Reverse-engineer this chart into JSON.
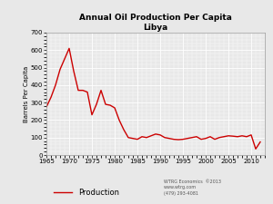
{
  "title": "Annual Oil Production Per Capita\nLibya",
  "ylabel": "Barrels Per Capita",
  "xlabel": "",
  "legend_label": "Production",
  "line_color": "#cc0000",
  "fig_facecolor": "#e8e8e8",
  "plot_facecolor": "#e8e8e8",
  "ylim": [
    0,
    700
  ],
  "xlim": [
    1965,
    2013
  ],
  "yticks": [
    0,
    100,
    200,
    300,
    400,
    500,
    600,
    700
  ],
  "xticks": [
    1965,
    1970,
    1975,
    1980,
    1985,
    1990,
    1995,
    2000,
    2005,
    2010
  ],
  "watermark": "WTRG Economics  ©2013\nwww.wtrg.com\n(479) 293-4081",
  "years": [
    1965,
    1966,
    1967,
    1968,
    1969,
    1970,
    1971,
    1972,
    1973,
    1974,
    1975,
    1976,
    1977,
    1978,
    1979,
    1980,
    1981,
    1982,
    1983,
    1984,
    1985,
    1986,
    1987,
    1988,
    1989,
    1990,
    1991,
    1992,
    1993,
    1994,
    1995,
    1996,
    1997,
    1998,
    1999,
    2000,
    2001,
    2002,
    2003,
    2004,
    2005,
    2006,
    2007,
    2008,
    2009,
    2010,
    2011,
    2012
  ],
  "values": [
    275,
    330,
    400,
    490,
    550,
    610,
    480,
    370,
    370,
    360,
    230,
    290,
    370,
    290,
    285,
    270,
    200,
    145,
    100,
    95,
    90,
    105,
    100,
    110,
    120,
    115,
    100,
    95,
    90,
    88,
    90,
    95,
    100,
    105,
    90,
    95,
    105,
    90,
    100,
    105,
    110,
    108,
    105,
    110,
    105,
    115,
    35,
    75
  ]
}
